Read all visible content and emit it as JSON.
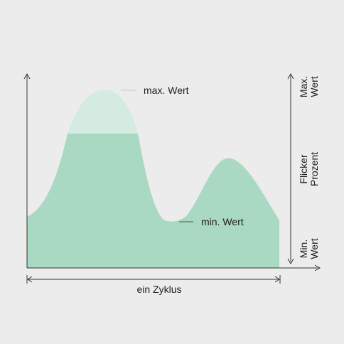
{
  "labels": {
    "max_value": "max. Wert",
    "min_value": "min. Wert",
    "cycle": "ein Zyklus",
    "axis_top": [
      "Max.",
      "Wert"
    ],
    "axis_middle": [
      "Flicker",
      "Prozent"
    ],
    "axis_bottom": [
      "Min.",
      "Wert"
    ]
  },
  "colors": {
    "background": "#ececec",
    "waveform_fill": "#a9d8c3",
    "peak_highlight": "#d4ebe1",
    "axis": "#333333",
    "leader_line_max": "#c8c8c8",
    "leader_line_min": "#555555"
  }
}
